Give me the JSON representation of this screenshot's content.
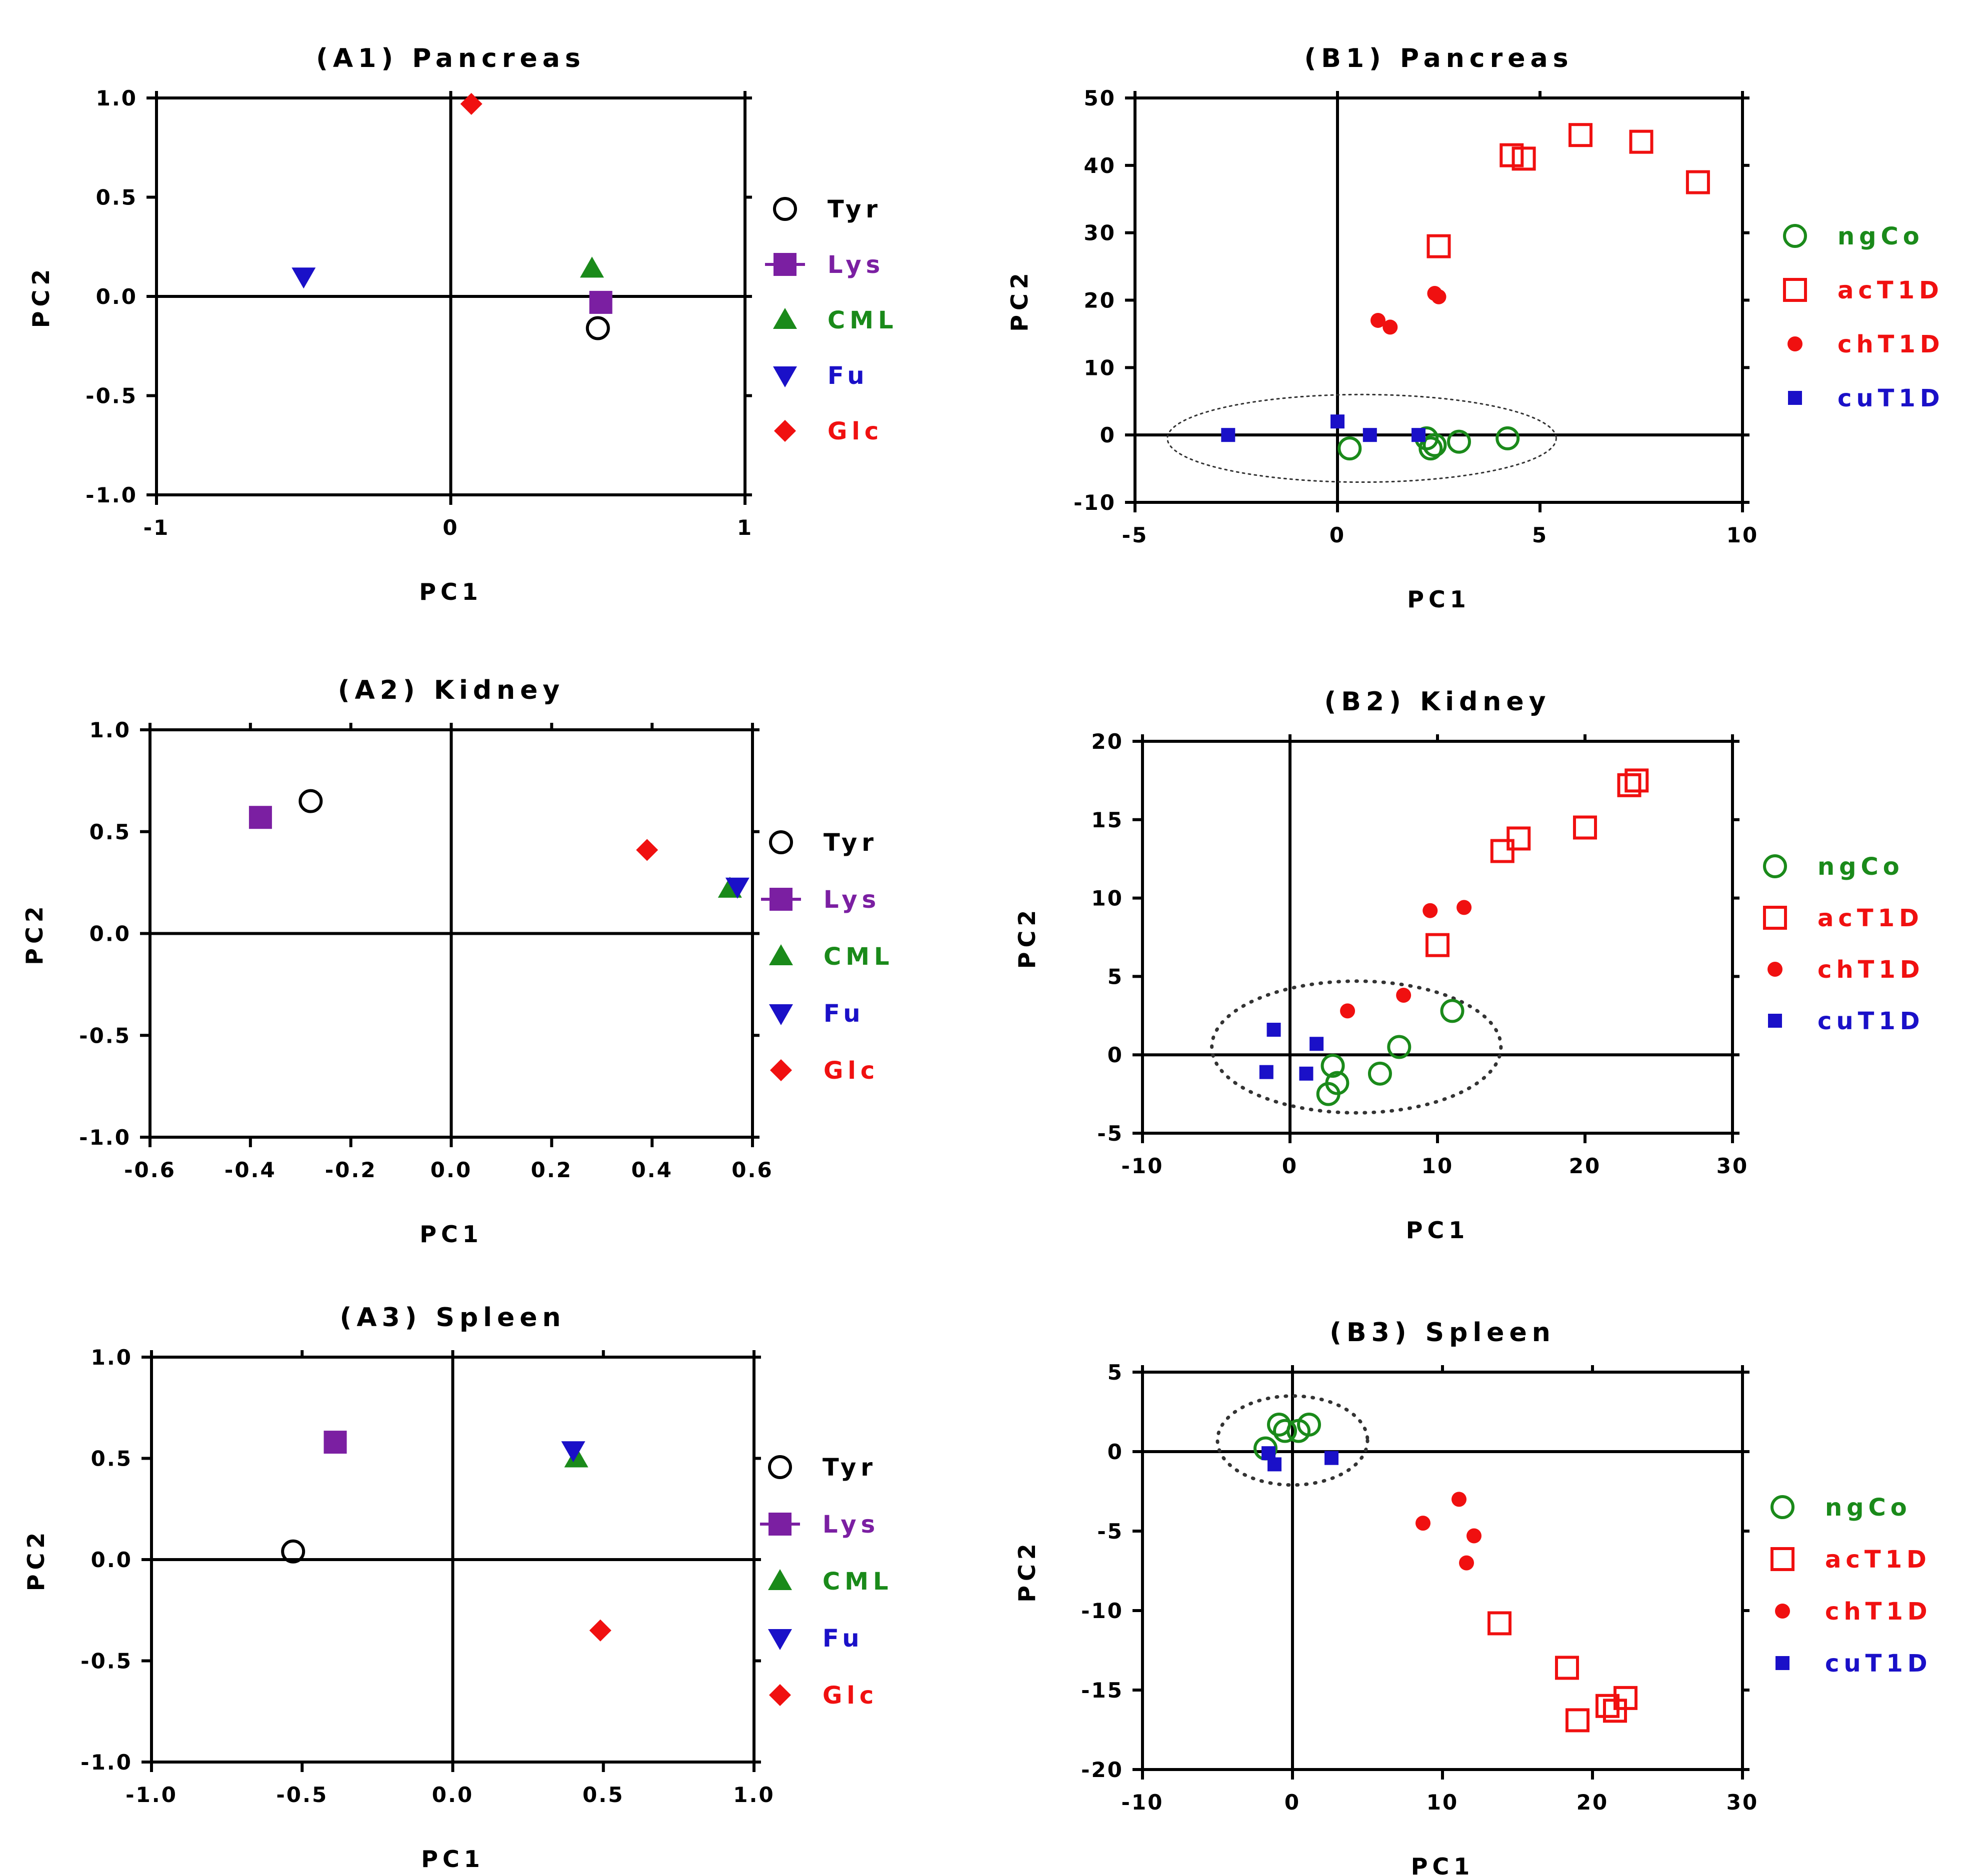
{
  "colors": {
    "black": "#000000",
    "purple": "#7B1FA2",
    "green": "#1A8A1A",
    "blue": "#1A10C8",
    "red": "#F01010",
    "ellipse": "#333333"
  },
  "chart_data": [
    {
      "id": "A1",
      "type": "scatter",
      "title": "(A1) Pancreas",
      "xlabel": "PC1",
      "ylabel": "PC2",
      "xlim": [
        -1,
        1
      ],
      "ylim": [
        -1,
        1
      ],
      "xticks": [
        -1,
        0,
        1
      ],
      "xtick_labels": [
        "-1",
        "0",
        "1"
      ],
      "yticks": [
        -1,
        -0.5,
        0,
        0.5,
        1
      ],
      "ytick_labels": [
        "-1.0",
        "-0.5",
        "0.0",
        "0.5",
        "1.0"
      ],
      "series": [
        {
          "name": "Tyr",
          "marker": "circle-open",
          "color": "#000000",
          "points": [
            [
              0.5,
              -0.16
            ]
          ]
        },
        {
          "name": "Lys",
          "marker": "square",
          "color": "#7B1FA2",
          "points": [
            [
              0.51,
              -0.03
            ]
          ]
        },
        {
          "name": "CML",
          "marker": "triangle-up",
          "color": "#1A8A1A",
          "points": [
            [
              0.48,
              0.14
            ]
          ]
        },
        {
          "name": "Fu",
          "marker": "triangle-down",
          "color": "#1A10C8",
          "points": [
            [
              -0.5,
              0.1
            ]
          ]
        },
        {
          "name": "Glc",
          "marker": "diamond",
          "color": "#F01010",
          "points": [
            [
              0.07,
              0.97
            ]
          ]
        }
      ]
    },
    {
      "id": "B1",
      "type": "scatter",
      "title": "(B1) Pancreas",
      "xlabel": "PC1",
      "ylabel": "PC2",
      "xlim": [
        -5,
        10
      ],
      "ylim": [
        -10,
        50
      ],
      "xticks": [
        -5,
        0,
        5,
        10
      ],
      "xtick_labels": [
        "-5",
        "0",
        "5",
        "10"
      ],
      "yticks": [
        -10,
        0,
        10,
        20,
        30,
        40,
        50
      ],
      "ytick_labels": [
        "-10",
        "0",
        "10",
        "20",
        "30",
        "40",
        "50"
      ],
      "ellipse": {
        "cx": 0.6,
        "cy": -0.5,
        "rx": 4.8,
        "ry": 6.5
      },
      "series": [
        {
          "name": "ngCo",
          "marker": "circle-open",
          "color": "#1A8A1A",
          "points": [
            [
              0.3,
              -2
            ],
            [
              2.2,
              -0.5
            ],
            [
              2.3,
              -2
            ],
            [
              2.4,
              -1.5
            ],
            [
              3,
              -1
            ],
            [
              4.2,
              -0.5
            ]
          ]
        },
        {
          "name": "acT1D",
          "marker": "square-open",
          "color": "#F01010",
          "points": [
            [
              2.5,
              28
            ],
            [
              4.3,
              41.5
            ],
            [
              4.6,
              41
            ],
            [
              6,
              44.5
            ],
            [
              7.5,
              43.5
            ],
            [
              8.9,
              37.5
            ]
          ]
        },
        {
          "name": "chT1D",
          "marker": "dot",
          "color": "#F01010",
          "points": [
            [
              1,
              17
            ],
            [
              1.3,
              16
            ],
            [
              2.4,
              21
            ],
            [
              2.5,
              20.5
            ]
          ]
        },
        {
          "name": "cuT1D",
          "marker": "square-small",
          "color": "#1A10C8",
          "points": [
            [
              -2.7,
              0
            ],
            [
              0,
              2
            ],
            [
              0.8,
              0
            ],
            [
              2,
              0
            ]
          ]
        }
      ]
    },
    {
      "id": "A2",
      "type": "scatter",
      "title": "(A2) Kidney",
      "xlabel": "PC1",
      "ylabel": "PC2",
      "xlim": [
        -0.6,
        0.6
      ],
      "ylim": [
        -1,
        1
      ],
      "xticks": [
        -0.6,
        -0.4,
        -0.2,
        0,
        0.2,
        0.4,
        0.6
      ],
      "xtick_labels": [
        "-0.6",
        "-0.4",
        "-0.2",
        "0.0",
        "0.2",
        "0.4",
        "0.6"
      ],
      "yticks": [
        -1,
        -0.5,
        0,
        0.5,
        1
      ],
      "ytick_labels": [
        "-1.0",
        "-0.5",
        "0.0",
        "0.5",
        "1.0"
      ],
      "series": [
        {
          "name": "Tyr",
          "marker": "circle-open",
          "color": "#000000",
          "points": [
            [
              -0.28,
              0.65
            ]
          ]
        },
        {
          "name": "Lys",
          "marker": "square",
          "color": "#7B1FA2",
          "points": [
            [
              -0.38,
              0.57
            ]
          ]
        },
        {
          "name": "CML",
          "marker": "triangle-up",
          "color": "#1A8A1A",
          "points": [
            [
              0.555,
              0.22
            ]
          ]
        },
        {
          "name": "Fu",
          "marker": "triangle-down",
          "color": "#1A10C8",
          "points": [
            [
              0.57,
              0.23
            ]
          ]
        },
        {
          "name": "Glc",
          "marker": "diamond",
          "color": "#F01010",
          "points": [
            [
              0.39,
              0.41
            ]
          ]
        }
      ]
    },
    {
      "id": "B2",
      "type": "scatter",
      "title": "(B2) Kidney",
      "xlabel": "PC1",
      "ylabel": "PC2",
      "xlim": [
        -10,
        30
      ],
      "ylim": [
        -5,
        20
      ],
      "xticks": [
        -10,
        0,
        10,
        20,
        30
      ],
      "xtick_labels": [
        "-10",
        "0",
        "10",
        "20",
        "30"
      ],
      "yticks": [
        -5,
        0,
        5,
        10,
        15,
        20
      ],
      "ytick_labels": [
        "-5",
        "0",
        "5",
        "10",
        "15",
        "20"
      ],
      "ellipse": {
        "cx": 4.5,
        "cy": 0.5,
        "rx": 9.8,
        "ry": 4.2
      },
      "series": [
        {
          "name": "ngCo",
          "marker": "circle-open",
          "color": "#1A8A1A",
          "points": [
            [
              2.6,
              -2.5
            ],
            [
              3.2,
              -1.8
            ],
            [
              2.9,
              -0.7
            ],
            [
              6.1,
              -1.2
            ],
            [
              7.4,
              0.5
            ],
            [
              11,
              2.8
            ]
          ]
        },
        {
          "name": "acT1D",
          "marker": "square-open",
          "color": "#F01010",
          "points": [
            [
              10,
              7
            ],
            [
              14.4,
              13
            ],
            [
              15.5,
              13.8
            ],
            [
              20,
              14.5
            ],
            [
              23,
              17.2
            ],
            [
              23.5,
              17.5
            ]
          ]
        },
        {
          "name": "chT1D",
          "marker": "dot",
          "color": "#F01010",
          "points": [
            [
              9.5,
              9.2
            ],
            [
              11.8,
              9.4
            ],
            [
              3.9,
              2.8
            ],
            [
              7.7,
              3.8
            ]
          ]
        },
        {
          "name": "cuT1D",
          "marker": "square-small",
          "color": "#1A10C8",
          "points": [
            [
              -1.1,
              1.6
            ],
            [
              1.8,
              0.7
            ],
            [
              -1.6,
              -1.1
            ],
            [
              1.1,
              -1.2
            ]
          ]
        }
      ]
    },
    {
      "id": "A3",
      "type": "scatter",
      "title": "(A3) Spleen",
      "xlabel": "PC1",
      "ylabel": "PC2",
      "xlim": [
        -1,
        1
      ],
      "ylim": [
        -1,
        1
      ],
      "xticks": [
        -1,
        -0.5,
        0,
        0.5,
        1
      ],
      "xtick_labels": [
        "-1.0",
        "-0.5",
        "0.0",
        "0.5",
        "1.0"
      ],
      "yticks": [
        -1,
        -0.5,
        0,
        0.5,
        1
      ],
      "ytick_labels": [
        "-1.0",
        "-0.5",
        "0.0",
        "0.5",
        "1.0"
      ],
      "series": [
        {
          "name": "Tyr",
          "marker": "circle-open",
          "color": "#000000",
          "points": [
            [
              -0.53,
              0.04
            ]
          ]
        },
        {
          "name": "Lys",
          "marker": "square",
          "color": "#7B1FA2",
          "points": [
            [
              -0.39,
              0.58
            ]
          ]
        },
        {
          "name": "CML",
          "marker": "triangle-up",
          "color": "#1A8A1A",
          "points": [
            [
              0.41,
              0.5
            ]
          ]
        },
        {
          "name": "Fu",
          "marker": "triangle-down",
          "color": "#1A10C8",
          "points": [
            [
              0.4,
              0.54
            ]
          ]
        },
        {
          "name": "Glc",
          "marker": "diamond",
          "color": "#F01010",
          "points": [
            [
              0.49,
              -0.35
            ]
          ]
        }
      ]
    },
    {
      "id": "B3",
      "type": "scatter",
      "title": "(B3) Spleen",
      "xlabel": "PC1",
      "ylabel": "PC2",
      "xlim": [
        -10,
        30
      ],
      "ylim": [
        -20,
        5
      ],
      "xticks": [
        -10,
        0,
        10,
        20,
        30
      ],
      "xtick_labels": [
        "-10",
        "0",
        "10",
        "20",
        "30"
      ],
      "yticks": [
        -20,
        -15,
        -10,
        -5,
        0,
        5
      ],
      "ytick_labels": [
        "-20",
        "-15",
        "-10",
        "-5",
        "0",
        "5"
      ],
      "ellipse": {
        "cx": 0,
        "cy": 0.7,
        "rx": 5,
        "ry": 2.8
      },
      "series": [
        {
          "name": "ngCo",
          "marker": "circle-open",
          "color": "#1A8A1A",
          "points": [
            [
              -1.8,
              0.2
            ],
            [
              -0.9,
              1.7
            ],
            [
              -0.5,
              1.3
            ],
            [
              0.4,
              1.3
            ],
            [
              1.1,
              1.7
            ]
          ]
        },
        {
          "name": "acT1D",
          "marker": "square-open",
          "color": "#F01010",
          "points": [
            [
              13.8,
              -10.8
            ],
            [
              18.3,
              -13.6
            ],
            [
              19,
              -16.9
            ],
            [
              21,
              -16
            ],
            [
              21.5,
              -16.3
            ],
            [
              22.2,
              -15.5
            ]
          ]
        },
        {
          "name": "chT1D",
          "marker": "dot",
          "color": "#F01010",
          "points": [
            [
              11.1,
              -3
            ],
            [
              8.7,
              -4.5
            ],
            [
              12.1,
              -5.3
            ],
            [
              11.6,
              -7
            ]
          ]
        },
        {
          "name": "cuT1D",
          "marker": "square-small",
          "color": "#1A10C8",
          "points": [
            [
              -1.6,
              -0.1
            ],
            [
              -1.2,
              -0.8
            ],
            [
              2.6,
              -0.4
            ]
          ]
        }
      ]
    }
  ]
}
